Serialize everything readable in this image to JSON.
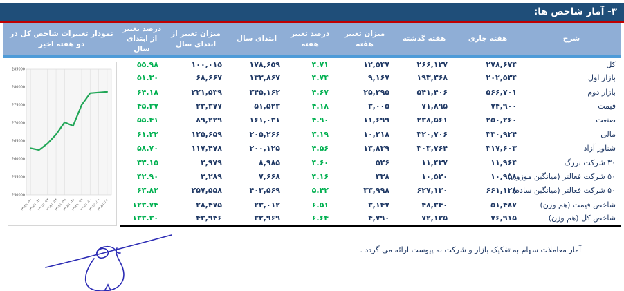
{
  "header": {
    "title": "۳- آمار شاخص ها:"
  },
  "colors": {
    "title_bar_bg": "#1F4E79",
    "red_rule": "#C00000",
    "table_header_bg": "#8FAED6",
    "table_header_separator": "#4E9BD8",
    "text_navy": "#1F3864",
    "percent_green": "#00B050",
    "chart_line_green": "#21A657",
    "signature_ink": "#2B2BB4"
  },
  "table": {
    "columns": [
      "شرح",
      "هفته جاری",
      "هفته گذشته",
      "میزان تغییر هفته",
      "درصد تغییر هفته",
      "ابتدای سال",
      "میزان تغییر از ابتدای سال",
      "درصد تغییر از ابتدای سال",
      "نمودار تغییرات شاخص کل در دو هفته اخیر"
    ],
    "rows": [
      {
        "label": "کل",
        "current_week": "۲۷۸,۶۷۴",
        "last_week": "۲۶۶,۱۲۷",
        "week_change": "۱۲,۵۴۷",
        "week_change_pct": "۴.۷۱",
        "year_start": "۱۷۸,۶۵۹",
        "year_change": "۱۰۰,۰۱۵",
        "year_change_pct": "۵۵.۹۸"
      },
      {
        "label": "بازار اول",
        "current_week": "۲۰۲,۵۳۴",
        "last_week": "۱۹۳,۳۶۸",
        "week_change": "۹,۱۶۷",
        "week_change_pct": "۴.۷۴",
        "year_start": "۱۳۳,۸۶۷",
        "year_change": "۶۸,۶۶۷",
        "year_change_pct": "۵۱.۳۰"
      },
      {
        "label": "بازار دوم",
        "current_week": "۵۶۶,۷۰۱",
        "last_week": "۵۴۱,۴۰۶",
        "week_change": "۲۵,۲۹۵",
        "week_change_pct": "۴.۶۷",
        "year_start": "۳۴۵,۱۶۲",
        "year_change": "۲۲۱,۵۳۹",
        "year_change_pct": "۶۴.۱۸"
      },
      {
        "label": "قیمت",
        "current_week": "۷۴,۹۰۰",
        "last_week": "۷۱,۸۹۵",
        "week_change": "۳,۰۰۵",
        "week_change_pct": "۴.۱۸",
        "year_start": "۵۱,۵۲۳",
        "year_change": "۲۳,۳۷۷",
        "year_change_pct": "۴۵.۳۷"
      },
      {
        "label": "صنعت",
        "current_week": "۲۵۰,۲۶۰",
        "last_week": "۲۳۸,۵۶۱",
        "week_change": "۱۱,۶۹۹",
        "week_change_pct": "۴.۹۰",
        "year_start": "۱۶۱,۰۳۱",
        "year_change": "۸۹,۲۲۹",
        "year_change_pct": "۵۵.۴۱"
      },
      {
        "label": "مالی",
        "current_week": "۳۳۰,۹۲۴",
        "last_week": "۳۲۰,۷۰۶",
        "week_change": "۱۰,۲۱۸",
        "week_change_pct": "۳.۱۹",
        "year_start": "۲۰۵,۲۶۶",
        "year_change": "۱۲۵,۶۵۹",
        "year_change_pct": "۶۱.۲۲"
      },
      {
        "label": "شناور آزاد",
        "current_week": "۳۱۷,۶۰۳",
        "last_week": "۳۰۳,۷۶۴",
        "week_change": "۱۳,۸۳۹",
        "week_change_pct": "۴.۵۶",
        "year_start": "۲۰۰,۱۲۵",
        "year_change": "۱۱۷,۴۷۸",
        "year_change_pct": "۵۸.۷۰"
      },
      {
        "label": "۳۰ شرکت بزرگ",
        "current_week": "۱۱,۹۶۴",
        "last_week": "۱۱,۴۳۷",
        "week_change": "۵۲۶",
        "week_change_pct": "۴.۶۰",
        "year_start": "۸,۹۸۵",
        "year_change": "۲,۹۷۹",
        "year_change_pct": "۳۳.۱۵"
      },
      {
        "label": "۵۰ شرکت فعالتر (میانگین موزون)",
        "current_week": "۱۰,۹۵۸",
        "last_week": "۱۰,۵۲۰",
        "week_change": "۴۳۸",
        "week_change_pct": "۴.۱۶",
        "year_start": "۷,۶۶۸",
        "year_change": "۳,۲۸۹",
        "year_change_pct": "۴۲.۹۰"
      },
      {
        "label": "۵۰ شرکت فعالتر (میانگین ساده)",
        "current_week": "۶۶۱,۱۲۸",
        "last_week": "۶۲۷,۱۳۰",
        "week_change": "۳۳,۹۹۸",
        "week_change_pct": "۵.۴۲",
        "year_start": "۴۰۳,۵۶۹",
        "year_change": "۲۵۷,۵۵۸",
        "year_change_pct": "۶۳.۸۲"
      },
      {
        "label": "شاخص قیمت (هم وزن)",
        "current_week": "۵۱,۴۸۷",
        "last_week": "۴۸,۳۴۰",
        "week_change": "۳,۱۴۷",
        "week_change_pct": "۶.۵۱",
        "year_start": "۲۳,۰۱۲",
        "year_change": "۲۸,۴۷۵",
        "year_change_pct": "۱۲۳.۷۴"
      },
      {
        "label": "شاخص کل (هم وزن)",
        "current_week": "۷۶,۹۱۵",
        "last_week": "۷۲,۱۲۵",
        "week_change": "۴,۷۹۰",
        "week_change_pct": "۶.۶۴",
        "year_start": "۳۲,۹۶۹",
        "year_change": "۴۳,۹۴۶",
        "year_change_pct": "۱۳۳.۳۰"
      }
    ]
  },
  "chart_data": {
    "type": "line",
    "title": "نمودار تغییرات شاخص کل در دو هفته اخیر",
    "x": [
      "۱۳۹۸/۱۰/۲۱",
      "۱۳۹۸/۱۰/۲۲",
      "۱۳۹۸/۱۰/۲۳",
      "۱۳۹۸/۱۰/۲۴",
      "۱۳۹۸/۱۰/۲۵",
      "۱۳۹۸/۱۰/۲۸",
      "۱۳۹۸/۱۰/۲۹",
      "۱۳۹۸/۱۰/۳۰",
      "۱۳۹۸/۱۱/۰۱",
      "۱۳۹۸/۱۱/۰۲"
    ],
    "values": [
      263000,
      262500,
      264300,
      266800,
      270200,
      269200,
      275000,
      278300,
      278500,
      278674
    ],
    "ylim": [
      250000,
      285000
    ],
    "ytick_step": 5000,
    "ytick_labels": [
      "250000",
      "255000",
      "260000",
      "265000",
      "270000",
      "275000",
      "280000",
      "285000"
    ],
    "xlabel": "",
    "ylabel": "",
    "legend": "none",
    "grid": "vertical-droplines",
    "line_color": "#21A657"
  },
  "footer": {
    "note": "آمار معاملات سهام به تفکیک بازار و شرکت به پیوست ارائه می گردد ."
  }
}
